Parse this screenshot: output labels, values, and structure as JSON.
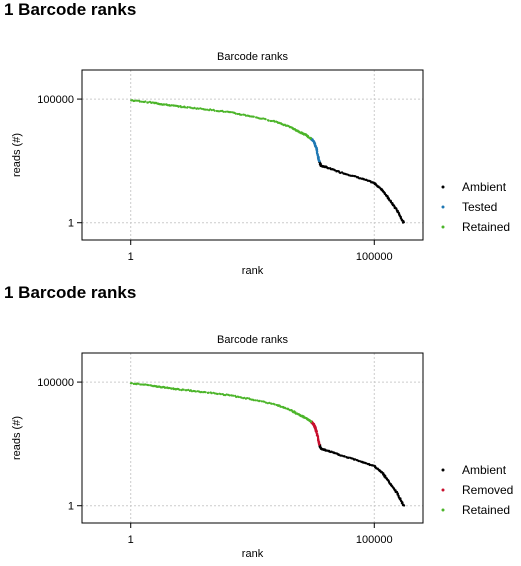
{
  "sections": [
    {
      "heading": "1 Barcode ranks"
    },
    {
      "heading": "1 Barcode ranks"
    }
  ],
  "chart_data": [
    {
      "type": "scatter",
      "title": "Barcode ranks",
      "xlabel": "rank",
      "ylabel": "reads (#)",
      "x_scale": "log10",
      "y_scale": "log10",
      "xlim": [
        0.1,
        1000000
      ],
      "ylim": [
        0.2,
        1500000
      ],
      "x_ticks": [
        1,
        100000
      ],
      "x_tick_labels": [
        "1",
        "100000"
      ],
      "y_ticks": [
        1,
        100000
      ],
      "y_tick_labels": [
        "1",
        "100000"
      ],
      "grid": true,
      "legend_position": "right",
      "series": [
        {
          "name": "Ambient",
          "color": "#000000",
          "x": [
            7500,
            8000,
            10000,
            20000,
            50000,
            100000,
            150000,
            200000,
            300000,
            400000
          ],
          "y": [
            300,
            200,
            180,
            110,
            65,
            40,
            20,
            9,
            3,
            1
          ]
        },
        {
          "name": "Tested",
          "color": "#1f78b4",
          "x": [
            5000,
            5500,
            6000,
            6500,
            7000,
            7500
          ],
          "y": [
            2500,
            2200,
            1600,
            1000,
            500,
            300
          ]
        },
        {
          "name": "Retained",
          "color": "#4cb52a",
          "x": [
            1,
            3,
            5,
            10,
            30,
            100,
            300,
            1000,
            2000,
            3000,
            4000,
            5000
          ],
          "y": [
            90000,
            70000,
            60000,
            50000,
            40000,
            30000,
            20000,
            12000,
            7000,
            4500,
            3500,
            2500
          ]
        }
      ]
    },
    {
      "type": "scatter",
      "title": "Barcode ranks",
      "xlabel": "rank",
      "ylabel": "reads (#)",
      "x_scale": "log10",
      "y_scale": "log10",
      "xlim": [
        0.1,
        1000000
      ],
      "ylim": [
        0.2,
        1500000
      ],
      "x_ticks": [
        1,
        100000
      ],
      "x_tick_labels": [
        "1",
        "100000"
      ],
      "y_ticks": [
        1,
        100000
      ],
      "y_tick_labels": [
        "1",
        "100000"
      ],
      "grid": true,
      "legend_position": "right",
      "series": [
        {
          "name": "Ambient",
          "color": "#000000",
          "x": [
            7500,
            8000,
            10000,
            20000,
            50000,
            100000,
            150000,
            200000,
            300000,
            400000
          ],
          "y": [
            300,
            200,
            180,
            110,
            65,
            40,
            20,
            9,
            3,
            1
          ]
        },
        {
          "name": "Removed",
          "color": "#c8102e",
          "x": [
            5000,
            5500,
            6000,
            6500,
            7000,
            7500
          ],
          "y": [
            2500,
            2200,
            1600,
            1000,
            500,
            300
          ]
        },
        {
          "name": "Retained",
          "color": "#4cb52a",
          "x": [
            1,
            3,
            5,
            10,
            30,
            100,
            300,
            1000,
            2000,
            3000,
            4000,
            5000
          ],
          "y": [
            90000,
            70000,
            60000,
            50000,
            40000,
            30000,
            20000,
            12000,
            7000,
            4500,
            3500,
            2500
          ]
        }
      ]
    }
  ]
}
